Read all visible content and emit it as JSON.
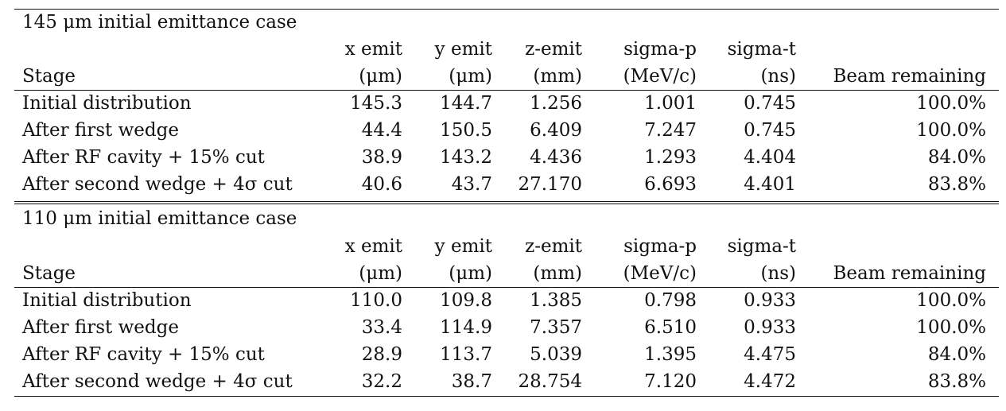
{
  "table": {
    "headers": {
      "stage": "Stage",
      "x_emit": [
        "x emit",
        "(μm)"
      ],
      "y_emit": [
        "y emit",
        "(μm)"
      ],
      "z_emit": [
        "z-emit",
        "(mm)"
      ],
      "sigma_p": [
        "sigma-p",
        "(MeV/c)"
      ],
      "sigma_t": [
        "sigma-t",
        "(ns)"
      ],
      "beam": "Beam remaining"
    },
    "sections": [
      {
        "title": "145 μm initial emittance case",
        "rows": [
          [
            "Initial distribution",
            "145.3",
            "144.7",
            "1.256",
            "1.001",
            "0.745",
            "100.0%"
          ],
          [
            "After first wedge",
            "44.4",
            "150.5",
            "6.409",
            "7.247",
            "0.745",
            "100.0%"
          ],
          [
            "After RF cavity + 15% cut",
            "38.9",
            "143.2",
            "4.436",
            "1.293",
            "4.404",
            "84.0%"
          ],
          [
            "After second wedge + 4σ cut",
            "40.6",
            "43.7",
            "27.170",
            "6.693",
            "4.401",
            "83.8%"
          ]
        ]
      },
      {
        "title": "110 μm initial emittance case",
        "rows": [
          [
            "Initial distribution",
            "110.0",
            "109.8",
            "1.385",
            "0.798",
            "0.933",
            "100.0%"
          ],
          [
            "After first wedge",
            "33.4",
            "114.9",
            "7.357",
            "6.510",
            "0.933",
            "100.0%"
          ],
          [
            "After RF cavity + 15% cut",
            "28.9",
            "113.7",
            "5.039",
            "1.395",
            "4.475",
            "84.0%"
          ],
          [
            "After second wedge + 4σ cut",
            "32.2",
            "38.7",
            "28.754",
            "7.120",
            "4.472",
            "83.8%"
          ]
        ]
      }
    ]
  }
}
